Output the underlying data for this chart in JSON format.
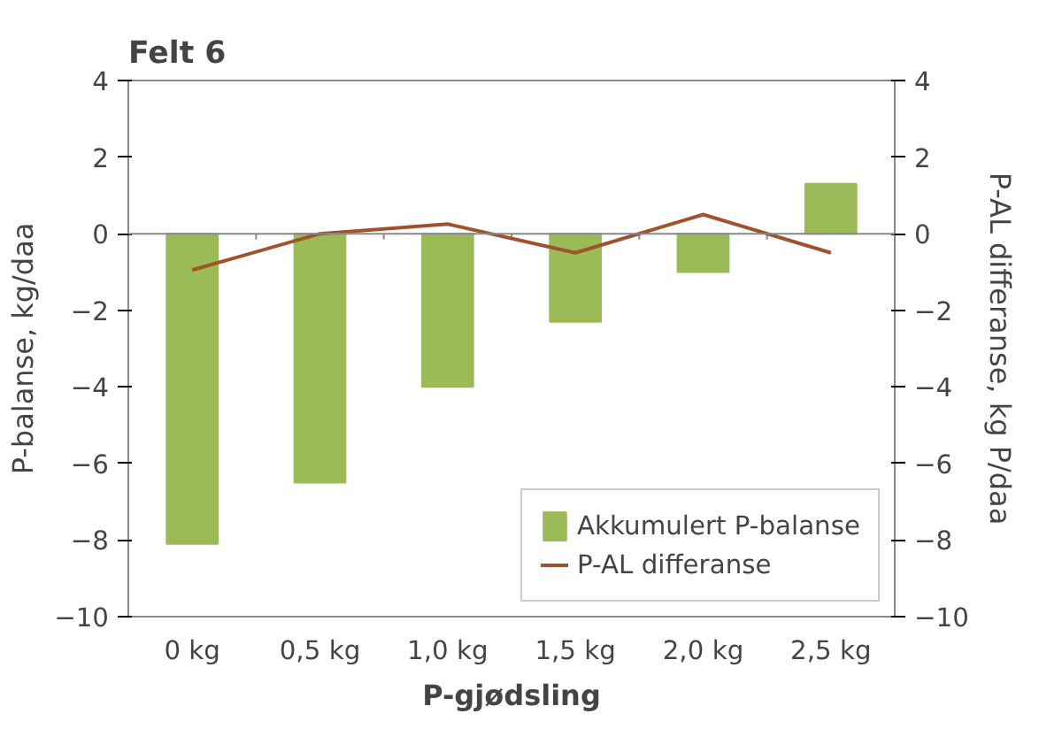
{
  "chart_data": {
    "type": "bar",
    "title": "Felt 6",
    "xlabel": "P-gjødsling",
    "ylabel": "P-balanse, kg/daa",
    "y2label": "P-AL differanse, kg P/daa",
    "categories": [
      "0 kg",
      "0,5 kg",
      "1,0 kg",
      "1,5 kg",
      "2,0 kg",
      "2,5 kg"
    ],
    "series": [
      {
        "name": "Akkumulert P-balanse",
        "color": "#9bbb59",
        "values": [
          -8.1,
          -6.5,
          -4.0,
          -2.3,
          -1.0,
          1.3
        ]
      },
      {
        "name": "P-AL differanse",
        "type": "line",
        "axis": "y2",
        "color": "#a0522d",
        "values": [
          -0.95,
          0.0,
          0.25,
          -0.5,
          0.5,
          -0.5
        ]
      }
    ],
    "ylim": [
      -10,
      4
    ],
    "yticks": [
      -10,
      -8,
      -6,
      -4,
      -2,
      0,
      2,
      4
    ],
    "y2lim": [
      -10,
      4
    ],
    "y2ticks": [
      -10,
      -8,
      -6,
      -4,
      -2,
      0,
      2,
      4
    ],
    "ref_lines": [
      {
        "axis": "y",
        "value": 0,
        "color": "#888888"
      }
    ],
    "grid": false,
    "legend": "bottom right"
  }
}
